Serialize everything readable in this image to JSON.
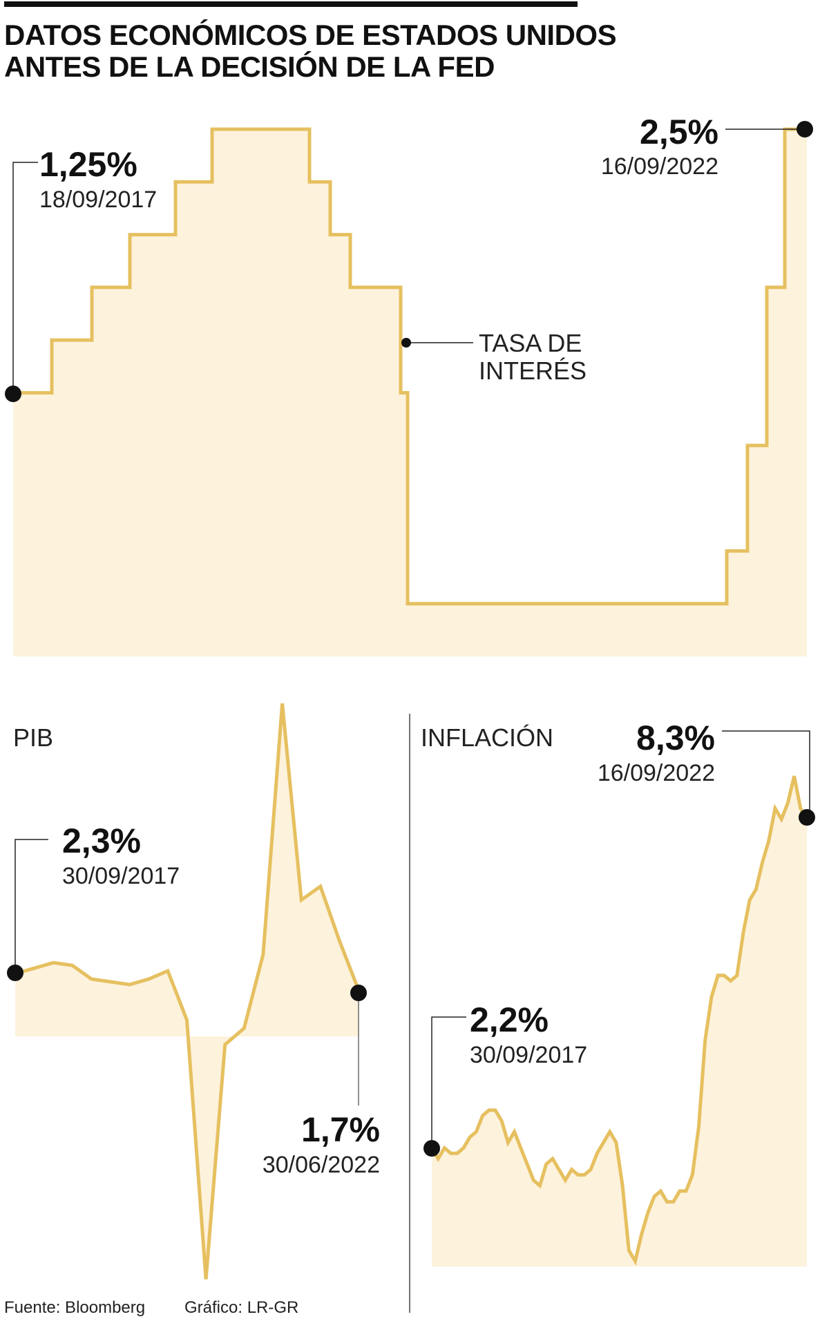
{
  "header": {
    "title_line1": "DATOS ECONÓMICOS DE ESTADOS UNIDOS",
    "title_line2": "ANTES DE LA DECISIÓN DE LA FED"
  },
  "footer": {
    "source": "Fuente: Bloomberg",
    "credit": "Gráfico: LR-GR"
  },
  "colors": {
    "line": "#e6c060",
    "fill": "#fdf2dc",
    "dot": "#111111",
    "text": "#111111"
  },
  "chart_data": [
    {
      "type": "area",
      "series": [
        {
          "name": "TASA DE INTERÉS",
          "steps": [
            1.25,
            1.5,
            1.75,
            2.0,
            2.25,
            2.5,
            2.25,
            2.0,
            1.75,
            1.25,
            0.25,
            0.5,
            1.0,
            1.75,
            2.5
          ]
        }
      ],
      "annotations": {
        "start_value": "1,25%",
        "start_date": "18/09/2017",
        "end_value": "2,5%",
        "end_date": "16/09/2022",
        "label_line1": "TASA DE",
        "label_line2": "INTERÉS"
      }
    },
    {
      "type": "area",
      "label": "PIB",
      "series": [
        {
          "name": "PIB",
          "values": [
            2.3,
            2.5,
            2.7,
            2.6,
            2.1,
            2.0,
            1.9,
            2.1,
            2.4,
            0.6,
            -8.9,
            -0.3,
            0.3,
            3.0,
            12.2,
            5.0,
            5.5,
            3.5,
            1.7
          ]
        }
      ],
      "annotations": {
        "start_value": "2,3%",
        "start_date": "30/09/2017",
        "end_value": "1,7%",
        "end_date": "30/06/2022"
      }
    },
    {
      "type": "area",
      "label": "INFLACIÓN",
      "series": [
        {
          "name": "INFLACIÓN",
          "values": [
            2.2,
            2.0,
            2.2,
            2.1,
            2.1,
            2.2,
            2.4,
            2.5,
            2.8,
            2.9,
            2.9,
            2.7,
            2.3,
            2.5,
            2.2,
            1.9,
            1.6,
            1.5,
            1.9,
            2.0,
            1.8,
            1.6,
            1.8,
            1.7,
            1.7,
            1.8,
            2.1,
            2.3,
            2.5,
            2.3,
            1.5,
            0.3,
            0.1,
            0.6,
            1.0,
            1.3,
            1.4,
            1.2,
            1.2,
            1.4,
            1.4,
            1.7,
            2.6,
            4.2,
            5.0,
            5.4,
            5.4,
            5.3,
            5.4,
            6.2,
            6.8,
            7.0,
            7.5,
            7.9,
            8.5,
            8.3,
            8.6,
            9.1,
            8.5,
            8.3
          ]
        }
      ],
      "annotations": {
        "start_value": "2,2%",
        "start_date": "30/09/2017",
        "end_value": "8,3%",
        "end_date": "16/09/2022"
      }
    }
  ]
}
